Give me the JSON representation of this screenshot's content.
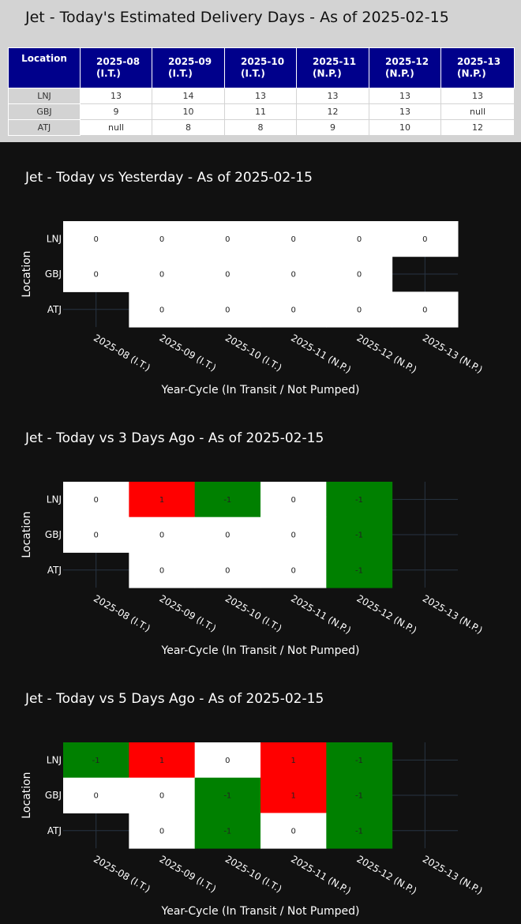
{
  "header": {
    "title": "Jet - Today's Estimated Delivery Days - As of 2025-02-15"
  },
  "table": {
    "location_header": "Location",
    "columns": [
      [
        "2025-08",
        "(I.T.)"
      ],
      [
        "2025-09",
        "(I.T.)"
      ],
      [
        "2025-10",
        "(I.T.)"
      ],
      [
        "2025-11",
        "(N.P.)"
      ],
      [
        "2025-12",
        "(N.P.)"
      ],
      [
        "2025-13",
        "(N.P.)"
      ]
    ],
    "rows": [
      {
        "location": "LNJ",
        "values": [
          "13",
          "14",
          "13",
          "13",
          "13",
          "13"
        ]
      },
      {
        "location": "GBJ",
        "values": [
          "9",
          "10",
          "11",
          "12",
          "13",
          "null"
        ]
      },
      {
        "location": "ATJ",
        "values": [
          "null",
          "8",
          "8",
          "9",
          "10",
          "12"
        ]
      }
    ]
  },
  "colors": {
    "zero": "#ffffff",
    "positive": "#ff0000",
    "negative": "#008000",
    "page_bg": "#111111",
    "header_bg": "#00008b"
  },
  "chart_data": [
    {
      "type": "heatmap",
      "title": "Jet - Today vs Yesterday - As of 2025-02-15",
      "xlabel": "Year-Cycle (In Transit / Not Pumped)",
      "ylabel": "Location",
      "x": [
        "2025-08 (I.T.)",
        "2025-09 (I.T.)",
        "2025-10 (I.T.)",
        "2025-11 (N.P.)",
        "2025-12 (N.P.)",
        "2025-13 (N.P.)"
      ],
      "y": [
        "LNJ",
        "GBJ",
        "ATJ"
      ],
      "z": [
        [
          0,
          0,
          0,
          0,
          0,
          0
        ],
        [
          0,
          0,
          0,
          0,
          0,
          null
        ],
        [
          null,
          0,
          0,
          0,
          0,
          0
        ]
      ]
    },
    {
      "type": "heatmap",
      "title": "Jet - Today vs 3 Days Ago - As of 2025-02-15",
      "xlabel": "Year-Cycle (In Transit / Not Pumped)",
      "ylabel": "Location",
      "x": [
        "2025-08 (I.T.)",
        "2025-09 (I.T.)",
        "2025-10 (I.T.)",
        "2025-11 (N.P.)",
        "2025-12 (N.P.)",
        "2025-13 (N.P.)"
      ],
      "y": [
        "LNJ",
        "GBJ",
        "ATJ"
      ],
      "z": [
        [
          0,
          1,
          -1,
          0,
          -1,
          null
        ],
        [
          0,
          0,
          0,
          0,
          -1,
          null
        ],
        [
          null,
          0,
          0,
          0,
          -1,
          null
        ]
      ]
    },
    {
      "type": "heatmap",
      "title": "Jet - Today vs 5 Days Ago - As of 2025-02-15",
      "xlabel": "Year-Cycle (In Transit / Not Pumped)",
      "ylabel": "Location",
      "x": [
        "2025-08 (I.T.)",
        "2025-09 (I.T.)",
        "2025-10 (I.T.)",
        "2025-11 (N.P.)",
        "2025-12 (N.P.)",
        "2025-13 (N.P.)"
      ],
      "y": [
        "LNJ",
        "GBJ",
        "ATJ"
      ],
      "z": [
        [
          -1,
          1,
          0,
          1,
          -1,
          null
        ],
        [
          0,
          0,
          -1,
          1,
          -1,
          null
        ],
        [
          null,
          0,
          -1,
          0,
          -1,
          null
        ]
      ]
    }
  ]
}
